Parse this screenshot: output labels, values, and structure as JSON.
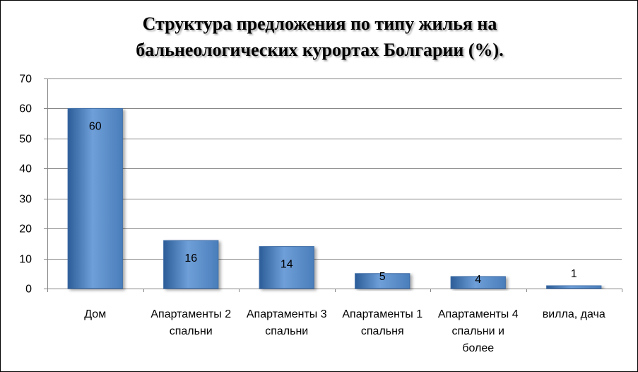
{
  "chart_data": {
    "type": "bar",
    "title_lines": [
      "Структура предложения по типу жилья на",
      "бальнеологических курортах Болгарии (%)."
    ],
    "categories": [
      [
        "Дом"
      ],
      [
        "Апартаменты 2",
        "спальни"
      ],
      [
        "Апартаменты 3",
        "спальни"
      ],
      [
        "Апартаменты 1",
        "спальня"
      ],
      [
        "Апартаменты 4",
        "спальни и",
        "более"
      ],
      [
        "вилла, дача"
      ]
    ],
    "values": [
      60,
      16,
      14,
      5,
      4,
      1
    ],
    "data_labels": [
      "60",
      "16",
      "14",
      "5",
      "4",
      "1"
    ],
    "yticks": [
      "0",
      "10",
      "20",
      "30",
      "40",
      "50",
      "60",
      "70"
    ],
    "ylim": [
      0,
      70
    ],
    "grid": true,
    "legend": "none",
    "bar_color": "#4a7ebb",
    "bar_color_light": "#6f9fd8",
    "bar_color_dark": "#2c5d98"
  }
}
